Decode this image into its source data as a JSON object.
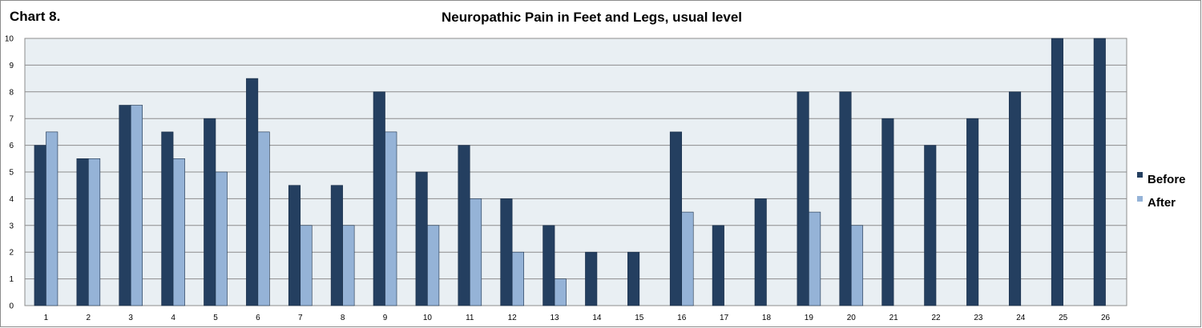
{
  "header": {
    "chart_label": "Chart 8.",
    "title": "Neuropathic Pain in Feet and Legs, usual level"
  },
  "colors": {
    "before": "#243f60",
    "after": "#95b3d7",
    "plot_bg": "#e9eff3",
    "grid": "#8c8c8c"
  },
  "chart_data": {
    "type": "bar",
    "title": "Neuropathic Pain in Feet and Legs, usual level",
    "xlabel": "",
    "ylabel": "",
    "categories": [
      "1",
      "2",
      "3",
      "4",
      "5",
      "6",
      "7",
      "8",
      "9",
      "10",
      "11",
      "12",
      "13",
      "14",
      "15",
      "16",
      "17",
      "18",
      "19",
      "20",
      "21",
      "22",
      "23",
      "24",
      "25",
      "26"
    ],
    "series": [
      {
        "name": "Before",
        "values": [
          6,
          5.5,
          7.5,
          6.5,
          7,
          8.5,
          4.5,
          4.5,
          8,
          5,
          6,
          4,
          3,
          2,
          2,
          6.5,
          3,
          4,
          8,
          8,
          7,
          6,
          7,
          8,
          10,
          10
        ]
      },
      {
        "name": "After",
        "values": [
          6.5,
          5.5,
          7.5,
          5.5,
          5,
          6.5,
          3,
          3,
          6.5,
          3,
          4,
          2,
          1,
          null,
          null,
          3.5,
          null,
          null,
          3.5,
          3,
          null,
          null,
          null,
          null,
          null,
          null
        ]
      }
    ],
    "yticks": [
      0,
      1,
      2,
      3,
      4,
      5,
      6,
      7,
      8,
      9,
      10
    ],
    "ylim": [
      0,
      10
    ],
    "grid": true,
    "legend_position": "right"
  }
}
